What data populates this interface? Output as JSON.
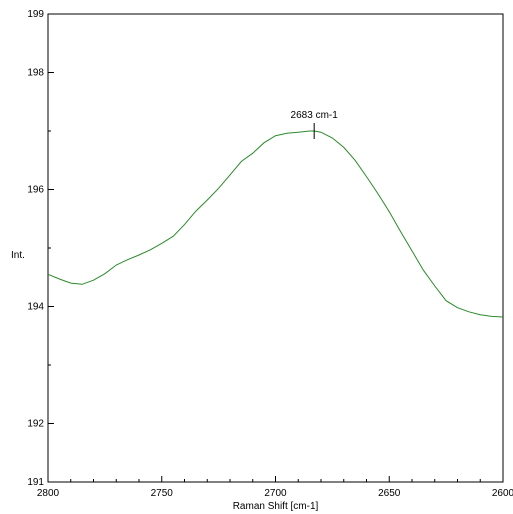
{
  "chart_data": {
    "type": "line",
    "xlabel": "Raman Shift [cm-1]",
    "ylabel": "Int.",
    "xlim": [
      2800,
      2600
    ],
    "ylim": [
      191,
      199
    ],
    "x_reversed": true,
    "grid": false,
    "x_ticks": [
      "2800",
      "2750",
      "2700",
      "2650",
      "2600"
    ],
    "y_ticks": [
      "191",
      "192",
      "194",
      "196",
      "198",
      "199"
    ],
    "annotation": {
      "label": "2683 cm-1",
      "x": 2683,
      "y": 197.0
    },
    "series": [
      {
        "color": "#2a8a2a",
        "x": [
          2800,
          2795,
          2790,
          2785,
          2780,
          2775,
          2770,
          2765,
          2760,
          2755,
          2750,
          2745,
          2740,
          2735,
          2730,
          2725,
          2720,
          2715,
          2710,
          2705,
          2700,
          2695,
          2690,
          2685,
          2683,
          2680,
          2675,
          2670,
          2665,
          2660,
          2655,
          2650,
          2645,
          2640,
          2635,
          2630,
          2625,
          2620,
          2615,
          2610,
          2605,
          2600
        ],
        "y": [
          194.55,
          194.47,
          194.4,
          194.38,
          194.45,
          194.56,
          194.71,
          194.8,
          194.88,
          194.97,
          195.08,
          195.2,
          195.4,
          195.63,
          195.82,
          196.02,
          196.25,
          196.48,
          196.62,
          196.8,
          196.92,
          196.96,
          196.98,
          197.0,
          197.0,
          196.98,
          196.88,
          196.72,
          196.5,
          196.22,
          195.93,
          195.62,
          195.28,
          194.95,
          194.62,
          194.35,
          194.1,
          193.98,
          193.91,
          193.86,
          193.83,
          193.82
        ]
      }
    ]
  }
}
